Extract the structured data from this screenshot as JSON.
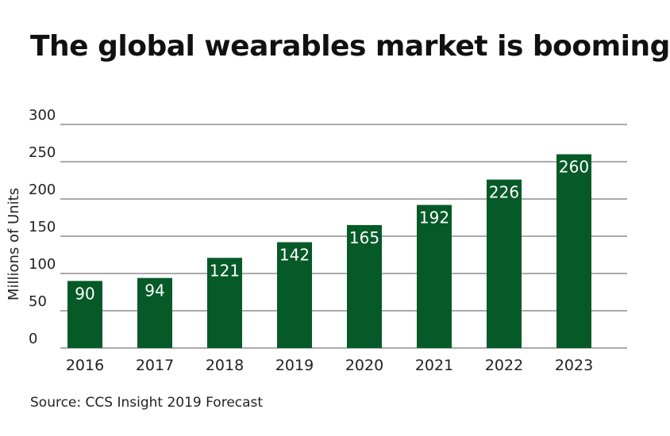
{
  "title": "The global wearables market is booming",
  "source": "Source: CCS Insight 2019 Forecast",
  "colors": {
    "bar": "#055a28",
    "grid": "#555555",
    "label": "#ffffff"
  },
  "chart_data": {
    "type": "bar",
    "title": "The global wearables market is booming",
    "xlabel": "",
    "ylabel": "Millions of Units",
    "categories": [
      "2016",
      "2017",
      "2018",
      "2019",
      "2020",
      "2021",
      "2022",
      "2023"
    ],
    "values": [
      90,
      94,
      121,
      142,
      165,
      192,
      226,
      260
    ],
    "ylim": [
      0,
      300
    ],
    "yticks": [
      0,
      50,
      100,
      150,
      200,
      250,
      300
    ],
    "grid": true,
    "legend": "none"
  }
}
